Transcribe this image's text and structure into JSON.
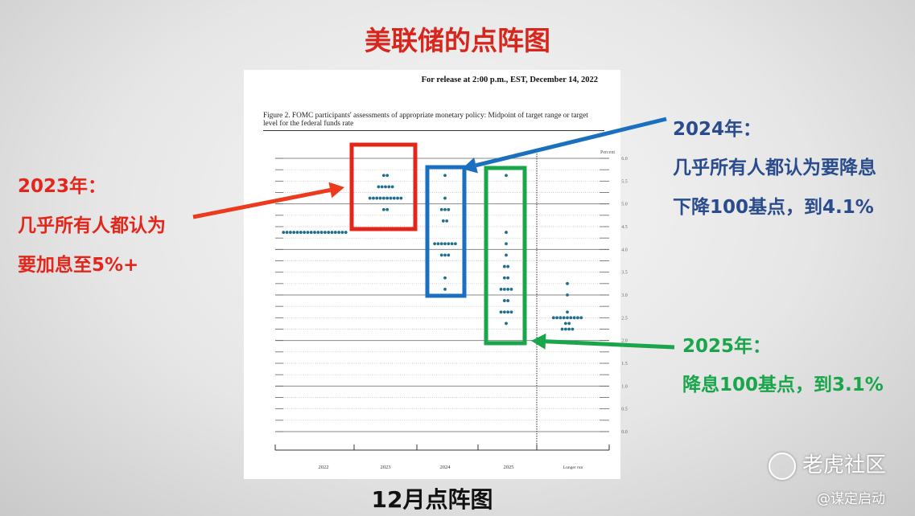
{
  "slide": {
    "title": "美联储的点阵图",
    "caption": "12月点阵图"
  },
  "document": {
    "release": "For release at 2:00 p.m., EST, December 14, 2022",
    "figure_caption": "Figure 2.  FOMC participants' assessments of appropriate monetary policy: Midpoint of target range or target level for the federal funds rate"
  },
  "annotations": {
    "y2023": {
      "heading": "2023年：",
      "line1": "几乎所有人都认为",
      "line2": "要加息至5%+",
      "color": "#e3261b"
    },
    "y2024": {
      "heading": "2024年：",
      "line1": "几乎所有人都认为要降息",
      "line2": "下降100基点，到4.1%",
      "color": "#1a6fbf"
    },
    "y2025": {
      "heading": "2025年：",
      "line1": "降息100基点，到3.1%",
      "color": "#19a54a"
    }
  },
  "watermark": {
    "brand": "老虎社区",
    "author": "@谋定启动"
  },
  "chart_data": {
    "type": "scatter",
    "subtype": "dot-plot",
    "ylabel": "Percent",
    "ylim": [
      0,
      6
    ],
    "y_ticks": [
      "0.0",
      "0.5",
      "1.0",
      "1.5",
      "2.0",
      "2.5",
      "3.0",
      "3.5",
      "4.0",
      "4.5",
      "5.0",
      "5.5",
      "6.0"
    ],
    "categories": [
      "2022",
      "2023",
      "2024",
      "2025",
      "Longer run"
    ],
    "dot_color": "#1f6e8c",
    "grid": true,
    "series": [
      {
        "category": "2022",
        "points": [
          {
            "y": 4.375,
            "count": 19
          }
        ]
      },
      {
        "category": "2023",
        "points": [
          {
            "y": 5.625,
            "count": 2
          },
          {
            "y": 5.375,
            "count": 5
          },
          {
            "y": 5.125,
            "count": 10
          },
          {
            "y": 4.875,
            "count": 2
          }
        ]
      },
      {
        "category": "2024",
        "points": [
          {
            "y": 5.625,
            "count": 1
          },
          {
            "y": 5.125,
            "count": 1
          },
          {
            "y": 4.875,
            "count": 3
          },
          {
            "y": 4.625,
            "count": 2
          },
          {
            "y": 4.125,
            "count": 7
          },
          {
            "y": 3.875,
            "count": 3
          },
          {
            "y": 3.375,
            "count": 1
          },
          {
            "y": 3.125,
            "count": 1
          }
        ]
      },
      {
        "category": "2025",
        "points": [
          {
            "y": 5.625,
            "count": 1
          },
          {
            "y": 4.375,
            "count": 1
          },
          {
            "y": 4.125,
            "count": 1
          },
          {
            "y": 3.875,
            "count": 1
          },
          {
            "y": 3.625,
            "count": 2
          },
          {
            "y": 3.375,
            "count": 2
          },
          {
            "y": 3.125,
            "count": 4
          },
          {
            "y": 2.875,
            "count": 2
          },
          {
            "y": 2.625,
            "count": 4
          },
          {
            "y": 2.375,
            "count": 1
          }
        ]
      },
      {
        "category": "Longer run",
        "points": [
          {
            "y": 3.25,
            "count": 1
          },
          {
            "y": 3.0,
            "count": 1
          },
          {
            "y": 2.625,
            "count": 1
          },
          {
            "y": 2.5,
            "count": 9
          },
          {
            "y": 2.375,
            "count": 2
          },
          {
            "y": 2.25,
            "count": 4
          }
        ]
      }
    ]
  }
}
